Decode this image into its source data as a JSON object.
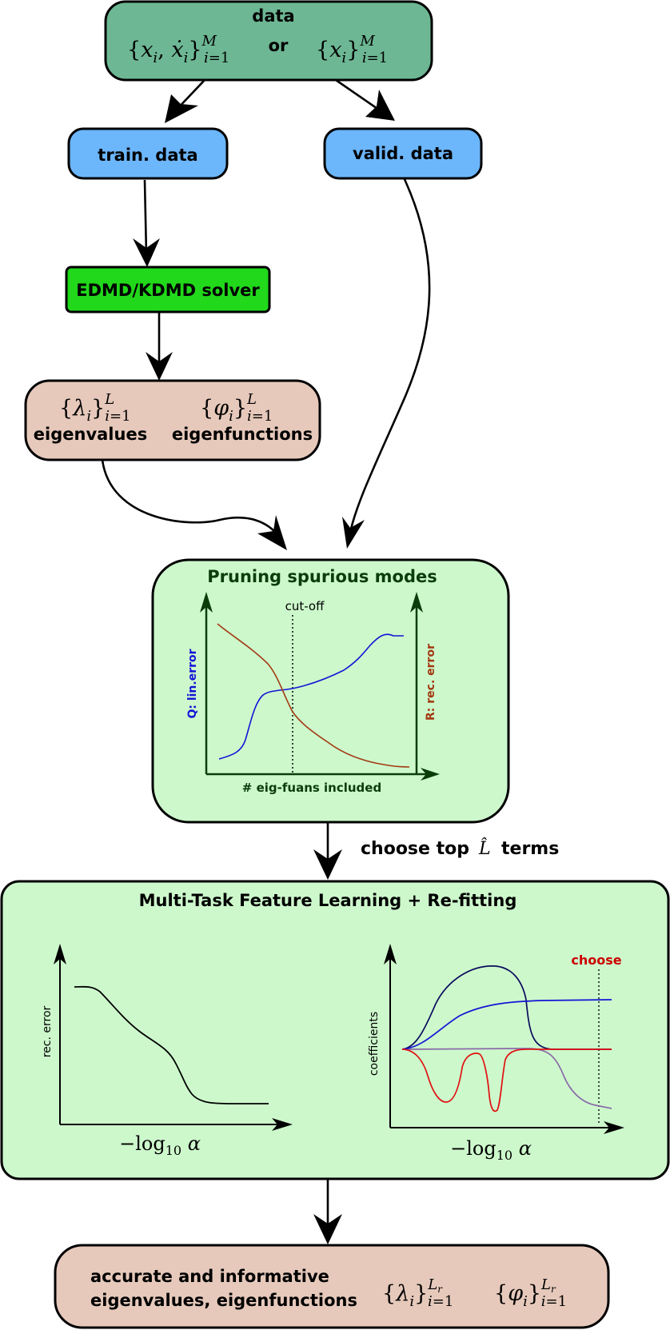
{
  "data_node": {
    "title": "data",
    "expr_a": "{x_i, ẋ_i}_{i=1}^M",
    "or_label": "or",
    "expr_b": "{x_i}_{i=1}^M"
  },
  "train_node": {
    "label": "train. data"
  },
  "valid_node": {
    "label": "valid. data"
  },
  "solver_node": {
    "label": "EDMD/KDMD solver"
  },
  "eig_node": {
    "expr_eigenvalues": "{λ_i}_{i=1}^L",
    "expr_eigenfunctions": "{φ_i}_{i=1}^L",
    "eigenvalues_label": "eigenvalues",
    "eigenfunctions_label": "eigenfunctions"
  },
  "pruning": {
    "title": "Pruning spurious modes",
    "cutoff_label": "cut-off",
    "left_axis_label": "Q: lin.error",
    "right_axis_label": "R: rec. error",
    "x_axis_label": "# eig-fuans included"
  },
  "choose_step": {
    "label_pre": "choose top",
    "symbol": "L̂",
    "label_post": "terms"
  },
  "mtfl": {
    "title": "Multi-Task Feature Learning + Re-fitting",
    "left_plot": {
      "ylabel": "rec. error",
      "xlabel": "−log₁₀ α"
    },
    "right_plot": {
      "ylabel": "coefficients",
      "xlabel": "−log₁₀ α",
      "marker_label": "choose"
    }
  },
  "result_node": {
    "line1": "accurate and informative",
    "line2": "eigenvalues, eigenfunctions",
    "expr_eigenvalues": "{λ_i}_{i=1}^{L_r}",
    "expr_eigenfunctions": "{φ_i}_{i=1}^{L_r}"
  },
  "colors": {
    "data_fill": "#6db794",
    "split_fill": "#6cb6fc",
    "solver_fill": "#21d81b",
    "eig_fill": "#e6c9bb",
    "panel_fill": "#cdf8cc",
    "dark_green": "#0b3d0b",
    "blue_curve": "#1414d6",
    "brown_curve": "#a33a12",
    "navy_curve": "#0c0c5e",
    "red_curve": "#e01010",
    "purple_curve": "#8a6aa8",
    "choose_red": "#cc0000"
  }
}
